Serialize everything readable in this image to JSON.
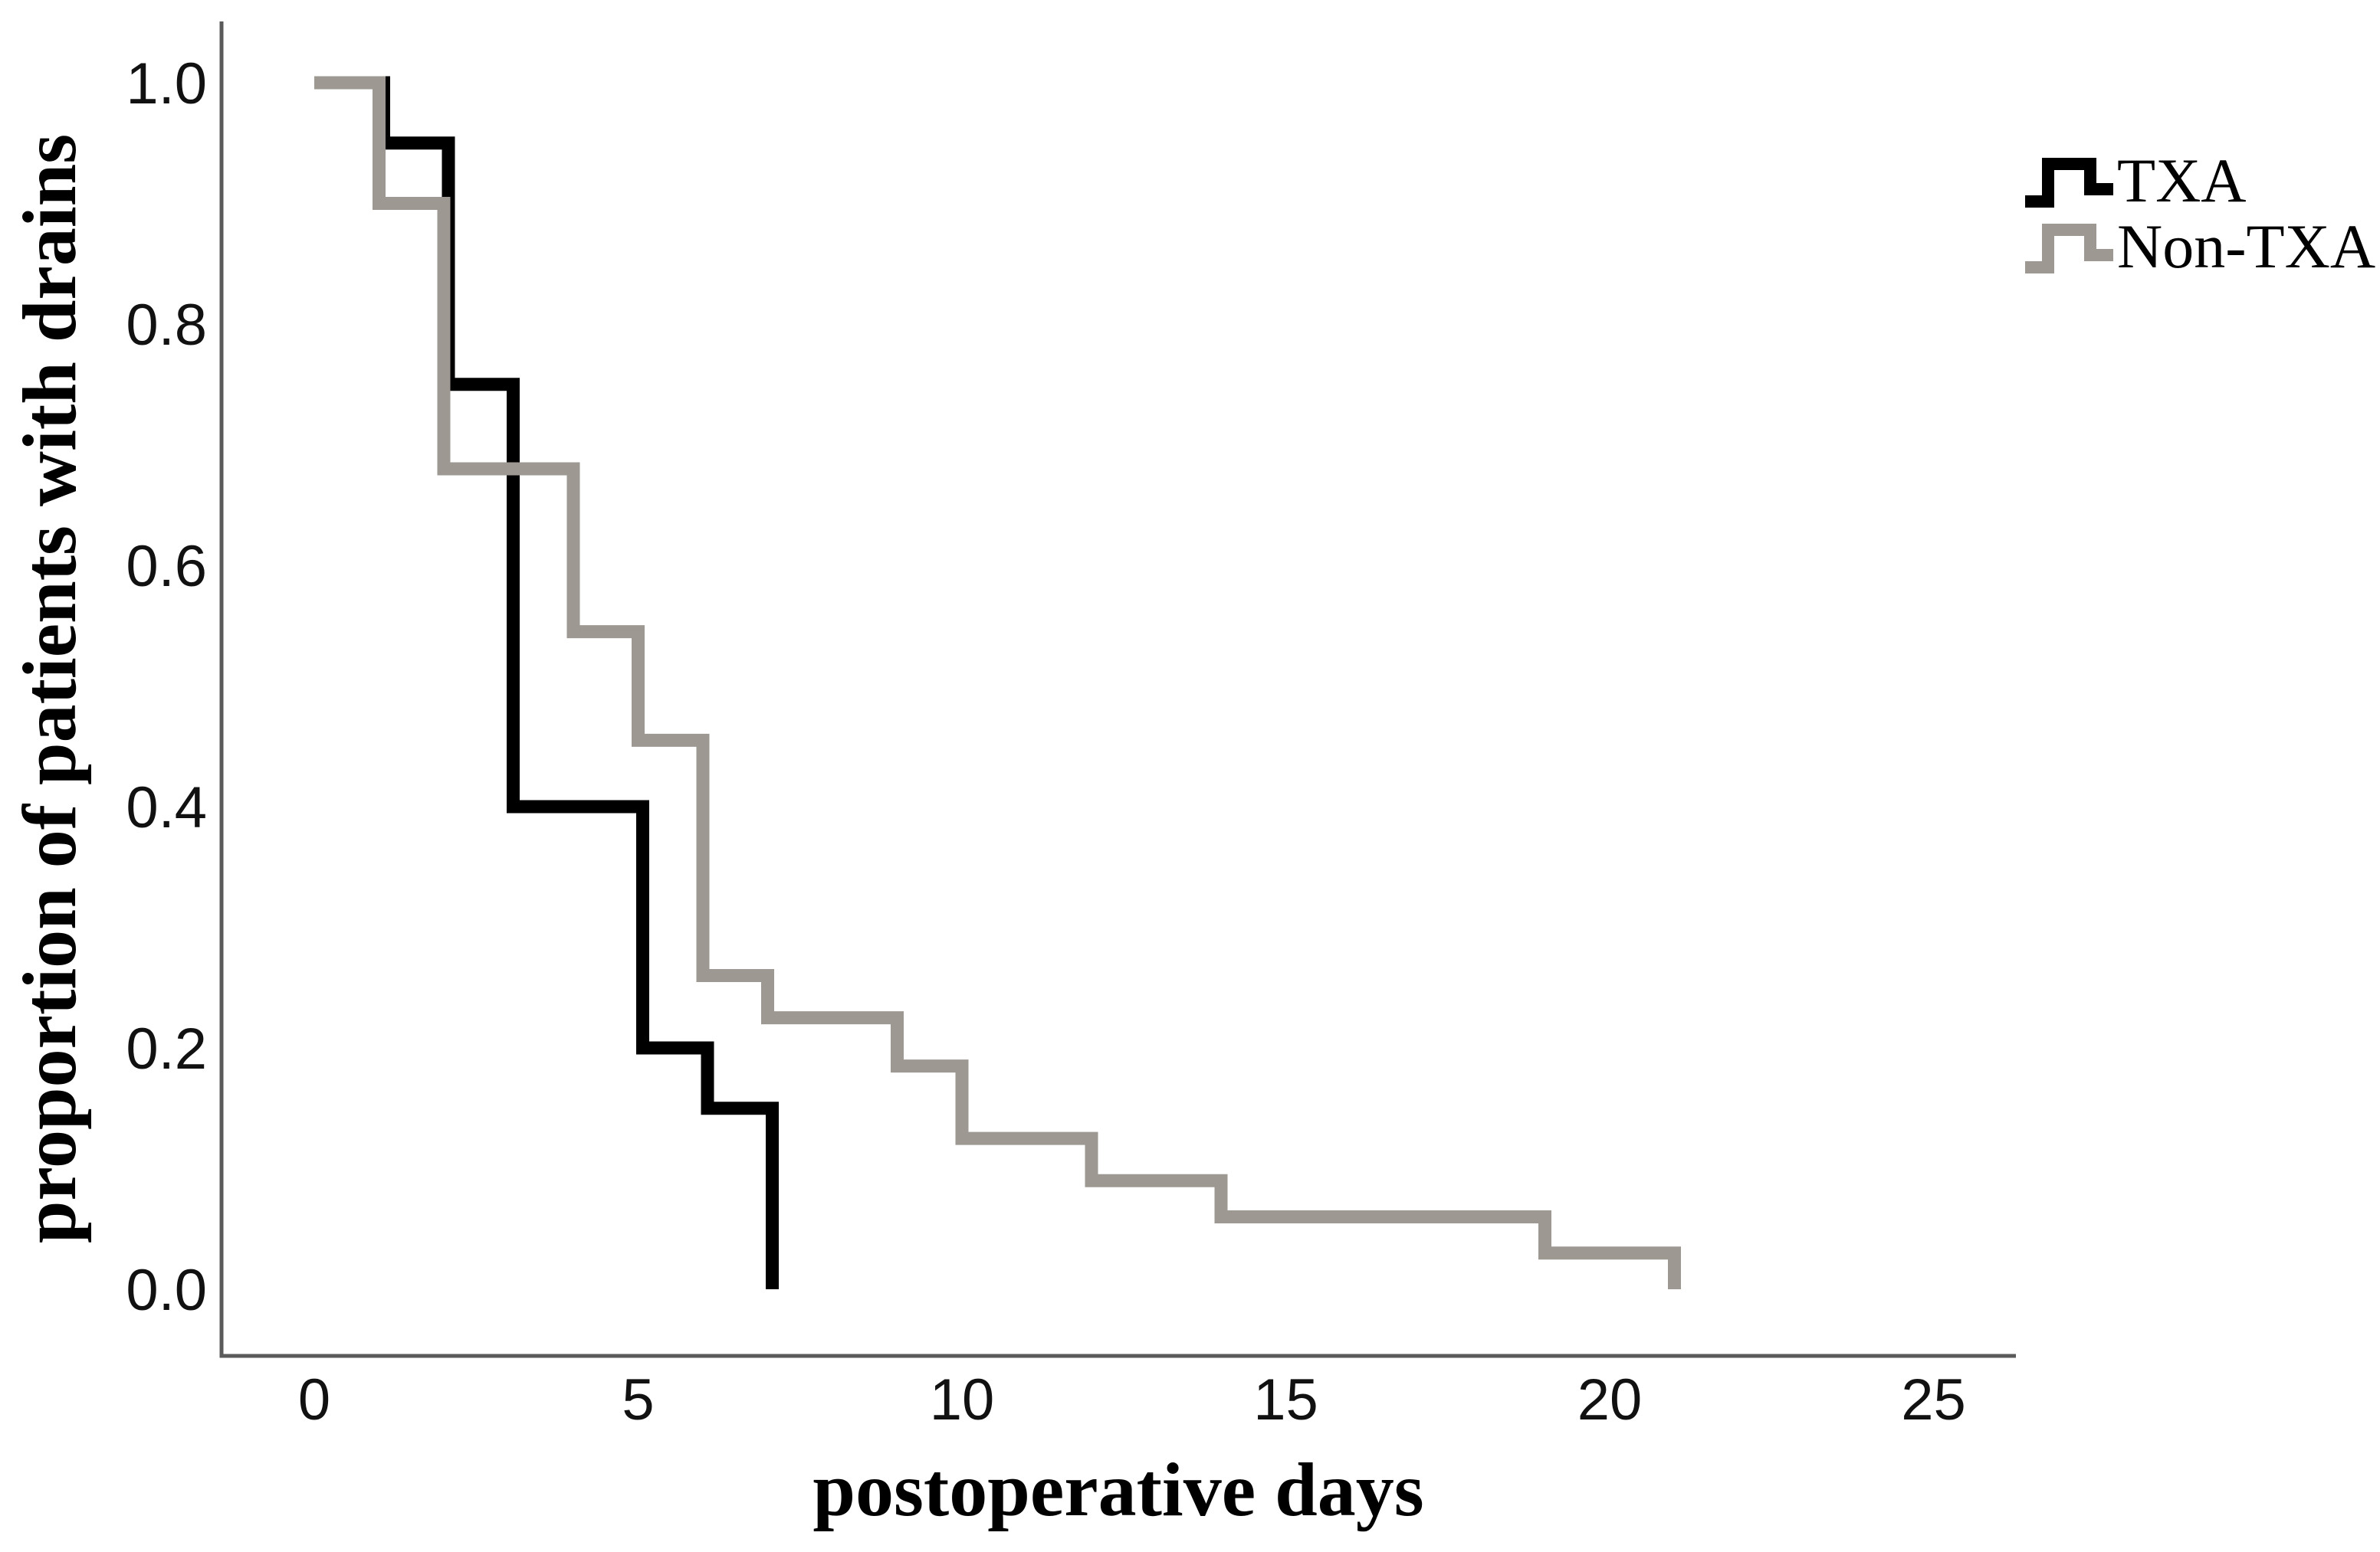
{
  "page": {
    "background": "#ffffff"
  },
  "chart_data": {
    "type": "line",
    "subtype": "kaplan-meier-step",
    "title": "",
    "xlabel": "postoperative days",
    "ylabel": "proportion of patients with drains",
    "x_ticks": [
      "0",
      "5",
      "10",
      "15",
      "20",
      "25"
    ],
    "y_ticks": [
      "1.0",
      "0.8",
      "0.6",
      "0.4",
      "0.2",
      "0.0"
    ],
    "xlim": [
      0,
      25
    ],
    "ylim": [
      0.0,
      1.0
    ],
    "grid": false,
    "legend_position": "top-right",
    "axis_color": "#5a5a5a",
    "series": [
      {
        "name": "TXA",
        "color": "#000000",
        "x": [
          0,
          1,
          1,
          2,
          2,
          3,
          3,
          5,
          5,
          6,
          6,
          7,
          7
        ],
        "y": [
          1.0,
          1.0,
          0.95,
          0.95,
          0.75,
          0.75,
          0.4,
          0.4,
          0.2,
          0.2,
          0.15,
          0.15,
          0.0
        ]
      },
      {
        "name": "Non-TXA",
        "color": "#9e9893",
        "x": [
          0,
          1,
          1,
          2,
          2,
          4,
          4,
          5,
          5,
          6,
          6,
          7,
          7,
          9,
          9,
          10,
          10,
          12,
          12,
          14,
          14,
          19,
          19,
          21,
          21
        ],
        "y": [
          1.0,
          1.0,
          0.9,
          0.9,
          0.68,
          0.68,
          0.545,
          0.545,
          0.455,
          0.455,
          0.26,
          0.26,
          0.225,
          0.225,
          0.185,
          0.185,
          0.125,
          0.125,
          0.09,
          0.09,
          0.06,
          0.06,
          0.03,
          0.03,
          0.0
        ]
      }
    ]
  },
  "legend": {
    "items": [
      {
        "label": "TXA",
        "color": "#000000"
      },
      {
        "label": "Non-TXA",
        "color": "#9e9893"
      }
    ]
  }
}
